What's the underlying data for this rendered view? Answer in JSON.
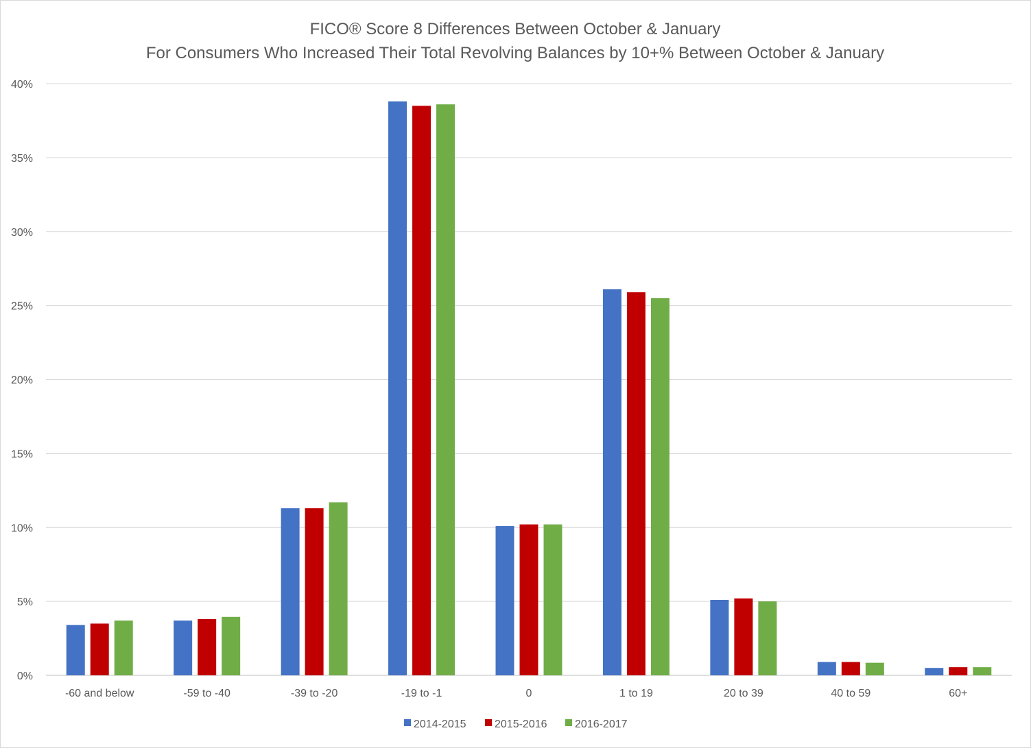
{
  "chart_data": {
    "type": "bar",
    "title": "FICO® Score 8 Differences Between October & January",
    "subtitle": "For Consumers Who Increased Their Total Revolving Balances by 10+% Between October & January",
    "xlabel": "",
    "ylabel": "",
    "categories": [
      "-60 and below",
      "-59 to -40",
      "-39 to -20",
      "-19 to -1",
      "0",
      "1 to 19",
      "20 to 39",
      "40 to 59",
      "60+"
    ],
    "series": [
      {
        "name": "2014-2015",
        "color": "#4472c4",
        "values": [
          3.4,
          3.7,
          11.3,
          38.8,
          10.1,
          26.1,
          5.1,
          0.9,
          0.5
        ]
      },
      {
        "name": "2015-2016",
        "color": "#c00000",
        "values": [
          3.5,
          3.8,
          11.3,
          38.5,
          10.2,
          25.9,
          5.2,
          0.9,
          0.55
        ]
      },
      {
        "name": "2016-2017",
        "color": "#70ad47",
        "values": [
          3.7,
          3.95,
          11.7,
          38.6,
          10.2,
          25.5,
          5.0,
          0.85,
          0.55
        ]
      }
    ],
    "ylim": [
      0,
      40
    ],
    "yticks": [
      0,
      5,
      10,
      15,
      20,
      25,
      30,
      35,
      40
    ],
    "ytick_labels": [
      "0%",
      "5%",
      "10%",
      "15%",
      "20%",
      "25%",
      "30%",
      "35%",
      "40%"
    ],
    "grid": true,
    "legend_position": "bottom"
  }
}
